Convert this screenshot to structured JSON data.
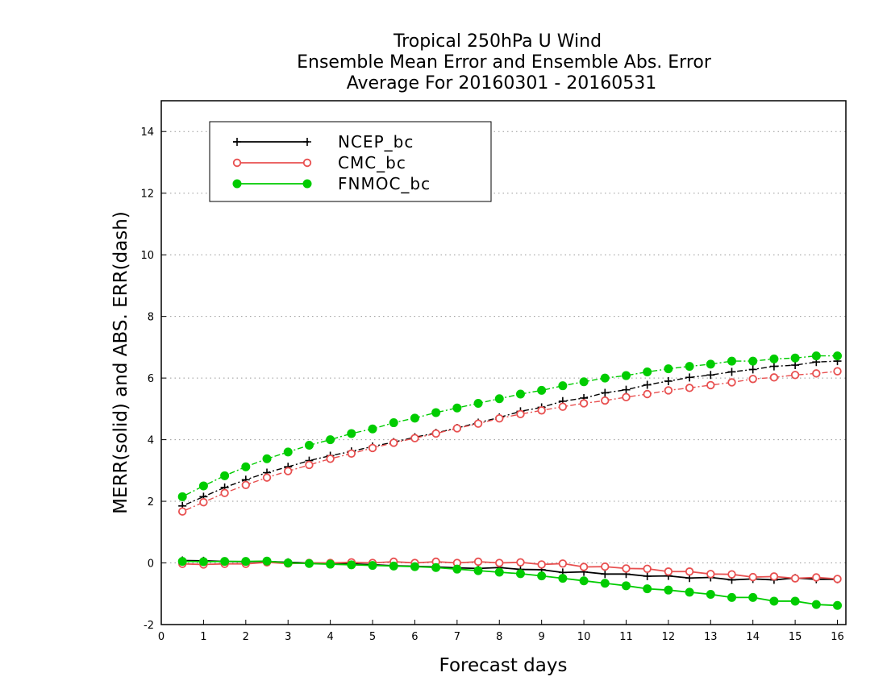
{
  "chart_data": {
    "type": "line",
    "title": [
      "Tropical 250hPa U Wind",
      "Ensemble Mean Error and Ensemble Abs. Error",
      "Average For 20160301 - 20160531"
    ],
    "xlabel": "Forecast days",
    "ylabel": "MERR(solid) and ABS. ERR(dash)",
    "xlim": [
      0,
      16.2
    ],
    "ylim": [
      -2,
      15
    ],
    "xticks": [
      0,
      1,
      2,
      3,
      4,
      5,
      6,
      7,
      8,
      9,
      10,
      11,
      12,
      13,
      14,
      15,
      16
    ],
    "yticks": [
      -2,
      0,
      2,
      4,
      6,
      8,
      10,
      12,
      14
    ],
    "grid": "horizontal dotted",
    "legend_position": "top-left",
    "x": [
      0.5,
      1,
      1.5,
      2,
      2.5,
      3,
      3.5,
      4,
      4.5,
      5,
      5.5,
      6,
      6.5,
      7,
      7.5,
      8,
      8.5,
      9,
      9.5,
      10,
      10.5,
      11,
      11.5,
      12,
      12.5,
      13,
      13.5,
      14,
      14.5,
      15,
      15.5,
      16
    ],
    "series": [
      {
        "name": "NCEP_bc",
        "color": "#000000",
        "marker": "plus",
        "merr": [
          0.08,
          0.07,
          0.05,
          0.04,
          0.05,
          0.02,
          0.0,
          -0.01,
          -0.03,
          -0.06,
          -0.09,
          -0.11,
          -0.13,
          -0.16,
          -0.18,
          -0.15,
          -0.21,
          -0.22,
          -0.31,
          -0.29,
          -0.36,
          -0.36,
          -0.43,
          -0.42,
          -0.49,
          -0.47,
          -0.55,
          -0.52,
          -0.55,
          -0.49,
          -0.53,
          -0.53
        ],
        "abs_err": [
          1.85,
          2.15,
          2.45,
          2.7,
          2.93,
          3.12,
          3.32,
          3.48,
          3.62,
          3.78,
          3.92,
          4.08,
          4.22,
          4.38,
          4.55,
          4.72,
          4.92,
          5.05,
          5.25,
          5.35,
          5.52,
          5.62,
          5.78,
          5.9,
          6.02,
          6.1,
          6.2,
          6.28,
          6.38,
          6.42,
          6.52,
          6.55
        ]
      },
      {
        "name": "CMC_bc",
        "color": "#e85050",
        "marker": "open-circle",
        "merr": [
          -0.03,
          -0.05,
          -0.03,
          -0.03,
          0.02,
          -0.02,
          0.0,
          0.0,
          0.02,
          0.0,
          0.04,
          0.0,
          0.04,
          0.0,
          0.04,
          0.0,
          0.02,
          -0.05,
          -0.02,
          -0.13,
          -0.12,
          -0.18,
          -0.19,
          -0.28,
          -0.28,
          -0.36,
          -0.37,
          -0.46,
          -0.44,
          -0.5,
          -0.47,
          -0.52
        ],
        "abs_err": [
          1.67,
          1.97,
          2.27,
          2.53,
          2.77,
          2.98,
          3.18,
          3.38,
          3.55,
          3.73,
          3.9,
          4.05,
          4.2,
          4.37,
          4.52,
          4.69,
          4.83,
          4.95,
          5.07,
          5.18,
          5.27,
          5.38,
          5.48,
          5.6,
          5.68,
          5.77,
          5.86,
          5.97,
          6.02,
          6.1,
          6.15,
          6.22
        ]
      },
      {
        "name": "FNMOC_bc",
        "color": "#00cc00",
        "marker": "filled-circle",
        "merr": [
          0.05,
          0.04,
          0.05,
          0.05,
          0.06,
          0.0,
          -0.02,
          -0.04,
          -0.06,
          -0.08,
          -0.1,
          -0.12,
          -0.15,
          -0.2,
          -0.25,
          -0.3,
          -0.35,
          -0.42,
          -0.5,
          -0.58,
          -0.66,
          -0.74,
          -0.84,
          -0.88,
          -0.95,
          -1.02,
          -1.12,
          -1.12,
          -1.24,
          -1.24,
          -1.35,
          -1.38
        ],
        "abs_err": [
          2.15,
          2.5,
          2.83,
          3.12,
          3.38,
          3.6,
          3.82,
          4.0,
          4.2,
          4.35,
          4.55,
          4.7,
          4.88,
          5.03,
          5.18,
          5.33,
          5.48,
          5.6,
          5.75,
          5.88,
          6.0,
          6.08,
          6.2,
          6.3,
          6.38,
          6.45,
          6.55,
          6.55,
          6.62,
          6.65,
          6.72,
          6.72
        ]
      }
    ]
  }
}
